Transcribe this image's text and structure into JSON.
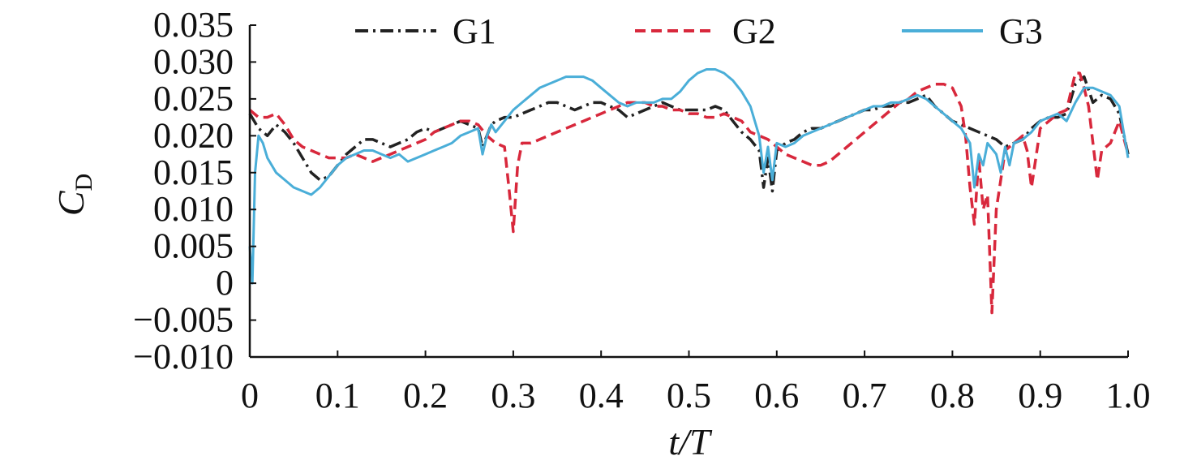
{
  "chart_data": {
    "type": "line",
    "title": "",
    "xlabel": "t/T",
    "ylabel": "C",
    "ylabel_subscript": "D",
    "xlim": [
      0,
      1.0
    ],
    "ylim": [
      -0.01,
      0.035
    ],
    "x_ticks": [
      "0",
      "0.1",
      "0.2",
      "0.3",
      "0.4",
      "0.5",
      "0.6",
      "0.7",
      "0.8",
      "0.9",
      "1.0"
    ],
    "y_ticks": [
      "0.035",
      "0.030",
      "0.025",
      "0.020",
      "0.015",
      "0.010",
      "0.005",
      "0",
      "−0.005",
      "−0.010"
    ],
    "grid": false,
    "legend_position": "top",
    "series": [
      {
        "name": "G1",
        "color": "#222222",
        "dash": "dashdot",
        "x": [
          0.0,
          0.01,
          0.02,
          0.03,
          0.04,
          0.05,
          0.06,
          0.07,
          0.08,
          0.09,
          0.1,
          0.11,
          0.12,
          0.13,
          0.14,
          0.15,
          0.16,
          0.17,
          0.18,
          0.19,
          0.2,
          0.21,
          0.22,
          0.23,
          0.24,
          0.25,
          0.26,
          0.265,
          0.27,
          0.275,
          0.28,
          0.29,
          0.3,
          0.31,
          0.32,
          0.33,
          0.34,
          0.35,
          0.36,
          0.37,
          0.38,
          0.39,
          0.4,
          0.41,
          0.42,
          0.43,
          0.44,
          0.45,
          0.46,
          0.47,
          0.48,
          0.49,
          0.5,
          0.51,
          0.52,
          0.53,
          0.54,
          0.55,
          0.56,
          0.57,
          0.58,
          0.585,
          0.59,
          0.595,
          0.6,
          0.61,
          0.62,
          0.63,
          0.64,
          0.65,
          0.66,
          0.67,
          0.68,
          0.69,
          0.7,
          0.71,
          0.72,
          0.73,
          0.74,
          0.75,
          0.76,
          0.77,
          0.78,
          0.79,
          0.8,
          0.81,
          0.82,
          0.83,
          0.84,
          0.85,
          0.86,
          0.87,
          0.88,
          0.89,
          0.9,
          0.91,
          0.92,
          0.93,
          0.94,
          0.95,
          0.96,
          0.97,
          0.98,
          0.99,
          1.0
        ],
        "values": [
          0.023,
          0.021,
          0.02,
          0.0215,
          0.0205,
          0.019,
          0.017,
          0.015,
          0.014,
          0.0145,
          0.016,
          0.0175,
          0.0185,
          0.0195,
          0.0195,
          0.019,
          0.0185,
          0.019,
          0.0195,
          0.0205,
          0.021,
          0.0205,
          0.021,
          0.0215,
          0.022,
          0.0215,
          0.021,
          0.0185,
          0.02,
          0.0215,
          0.022,
          0.0225,
          0.0225,
          0.023,
          0.0235,
          0.024,
          0.0245,
          0.0245,
          0.024,
          0.0235,
          0.024,
          0.0245,
          0.0245,
          0.024,
          0.0235,
          0.0225,
          0.023,
          0.0235,
          0.024,
          0.0245,
          0.024,
          0.0235,
          0.0235,
          0.0235,
          0.0235,
          0.024,
          0.0235,
          0.022,
          0.0205,
          0.0195,
          0.018,
          0.013,
          0.017,
          0.0125,
          0.018,
          0.019,
          0.0195,
          0.0205,
          0.021,
          0.021,
          0.0215,
          0.022,
          0.0225,
          0.023,
          0.0235,
          0.0235,
          0.024,
          0.024,
          0.0245,
          0.0245,
          0.025,
          0.0255,
          0.024,
          0.023,
          0.022,
          0.0215,
          0.021,
          0.0205,
          0.02,
          0.0195,
          0.0185,
          0.019,
          0.0195,
          0.021,
          0.022,
          0.0225,
          0.0225,
          0.023,
          0.027,
          0.028,
          0.0245,
          0.0255,
          0.025,
          0.023,
          0.0175
        ]
      },
      {
        "name": "G2",
        "color": "#d8283c",
        "dash": "dash",
        "x": [
          0.0,
          0.01,
          0.02,
          0.03,
          0.04,
          0.05,
          0.06,
          0.07,
          0.08,
          0.09,
          0.1,
          0.11,
          0.12,
          0.13,
          0.14,
          0.15,
          0.16,
          0.17,
          0.18,
          0.19,
          0.2,
          0.21,
          0.22,
          0.23,
          0.24,
          0.25,
          0.26,
          0.27,
          0.28,
          0.29,
          0.295,
          0.3,
          0.305,
          0.31,
          0.32,
          0.33,
          0.34,
          0.35,
          0.36,
          0.37,
          0.38,
          0.39,
          0.4,
          0.41,
          0.42,
          0.43,
          0.44,
          0.45,
          0.46,
          0.47,
          0.48,
          0.49,
          0.5,
          0.51,
          0.52,
          0.53,
          0.54,
          0.55,
          0.56,
          0.57,
          0.58,
          0.59,
          0.6,
          0.61,
          0.62,
          0.63,
          0.64,
          0.65,
          0.66,
          0.67,
          0.68,
          0.69,
          0.7,
          0.71,
          0.72,
          0.73,
          0.74,
          0.75,
          0.76,
          0.77,
          0.78,
          0.79,
          0.8,
          0.81,
          0.815,
          0.82,
          0.825,
          0.83,
          0.835,
          0.84,
          0.845,
          0.85,
          0.855,
          0.86,
          0.87,
          0.88,
          0.885,
          0.89,
          0.895,
          0.9,
          0.91,
          0.92,
          0.93,
          0.935,
          0.94,
          0.945,
          0.95,
          0.955,
          0.96,
          0.965,
          0.97,
          0.98,
          0.99,
          1.0
        ],
        "values": [
          0.0235,
          0.0225,
          0.0225,
          0.023,
          0.0215,
          0.0195,
          0.0185,
          0.018,
          0.0175,
          0.017,
          0.017,
          0.017,
          0.0175,
          0.017,
          0.0165,
          0.017,
          0.0175,
          0.018,
          0.0185,
          0.019,
          0.0195,
          0.0205,
          0.021,
          0.0215,
          0.022,
          0.022,
          0.0215,
          0.02,
          0.019,
          0.0185,
          0.013,
          0.007,
          0.016,
          0.019,
          0.019,
          0.0195,
          0.02,
          0.0205,
          0.021,
          0.0215,
          0.022,
          0.0225,
          0.023,
          0.0235,
          0.024,
          0.0245,
          0.0245,
          0.0245,
          0.024,
          0.024,
          0.0235,
          0.0235,
          0.023,
          0.023,
          0.0225,
          0.0225,
          0.023,
          0.0225,
          0.022,
          0.0205,
          0.02,
          0.0195,
          0.0185,
          0.0175,
          0.017,
          0.0165,
          0.016,
          0.016,
          0.0165,
          0.0175,
          0.0185,
          0.0195,
          0.0205,
          0.0215,
          0.0225,
          0.0235,
          0.0245,
          0.025,
          0.026,
          0.0265,
          0.027,
          0.027,
          0.0265,
          0.024,
          0.02,
          0.013,
          0.008,
          0.017,
          0.01,
          0.012,
          -0.004,
          0.01,
          0.014,
          0.018,
          0.019,
          0.02,
          0.018,
          0.013,
          0.017,
          0.021,
          0.022,
          0.023,
          0.0235,
          0.026,
          0.0285,
          0.0285,
          0.0265,
          0.024,
          0.019,
          0.014,
          0.018,
          0.019,
          0.022,
          0.0175
        ]
      },
      {
        "name": "G3",
        "color": "#4aaed8",
        "dash": "solid",
        "x": [
          0.0,
          0.003,
          0.006,
          0.01,
          0.015,
          0.02,
          0.03,
          0.04,
          0.05,
          0.06,
          0.07,
          0.08,
          0.09,
          0.1,
          0.11,
          0.12,
          0.13,
          0.14,
          0.15,
          0.16,
          0.17,
          0.18,
          0.19,
          0.2,
          0.21,
          0.22,
          0.23,
          0.24,
          0.25,
          0.26,
          0.265,
          0.27,
          0.275,
          0.28,
          0.29,
          0.3,
          0.31,
          0.32,
          0.33,
          0.34,
          0.35,
          0.36,
          0.37,
          0.38,
          0.39,
          0.4,
          0.41,
          0.42,
          0.43,
          0.44,
          0.45,
          0.46,
          0.47,
          0.48,
          0.49,
          0.5,
          0.51,
          0.52,
          0.53,
          0.54,
          0.55,
          0.56,
          0.57,
          0.58,
          0.585,
          0.59,
          0.595,
          0.6,
          0.61,
          0.62,
          0.63,
          0.64,
          0.65,
          0.66,
          0.67,
          0.68,
          0.69,
          0.7,
          0.71,
          0.72,
          0.73,
          0.74,
          0.75,
          0.76,
          0.77,
          0.78,
          0.79,
          0.8,
          0.81,
          0.82,
          0.825,
          0.83,
          0.835,
          0.84,
          0.85,
          0.855,
          0.86,
          0.865,
          0.87,
          0.88,
          0.89,
          0.9,
          0.91,
          0.92,
          0.925,
          0.93,
          0.94,
          0.95,
          0.96,
          0.97,
          0.98,
          0.99,
          1.0
        ],
        "values": [
          0.005,
          0.0,
          0.015,
          0.02,
          0.019,
          0.017,
          0.015,
          0.014,
          0.013,
          0.0125,
          0.012,
          0.013,
          0.0145,
          0.016,
          0.017,
          0.0175,
          0.018,
          0.018,
          0.0175,
          0.017,
          0.0175,
          0.0165,
          0.017,
          0.0175,
          0.018,
          0.0185,
          0.019,
          0.02,
          0.0205,
          0.021,
          0.0175,
          0.02,
          0.0215,
          0.0205,
          0.022,
          0.0235,
          0.0245,
          0.0255,
          0.0265,
          0.027,
          0.0275,
          0.028,
          0.028,
          0.028,
          0.0275,
          0.0265,
          0.0255,
          0.0245,
          0.024,
          0.0245,
          0.0245,
          0.0245,
          0.025,
          0.025,
          0.026,
          0.0275,
          0.0285,
          0.029,
          0.029,
          0.0285,
          0.0275,
          0.026,
          0.024,
          0.02,
          0.015,
          0.0185,
          0.014,
          0.019,
          0.0185,
          0.019,
          0.02,
          0.0205,
          0.021,
          0.0215,
          0.022,
          0.0225,
          0.023,
          0.0235,
          0.024,
          0.024,
          0.0245,
          0.0245,
          0.025,
          0.0255,
          0.025,
          0.024,
          0.023,
          0.022,
          0.021,
          0.019,
          0.013,
          0.0175,
          0.016,
          0.019,
          0.0175,
          0.015,
          0.0185,
          0.016,
          0.019,
          0.0195,
          0.0205,
          0.022,
          0.0225,
          0.023,
          0.0225,
          0.022,
          0.0245,
          0.0265,
          0.0265,
          0.026,
          0.0255,
          0.024,
          0.017
        ]
      }
    ]
  }
}
